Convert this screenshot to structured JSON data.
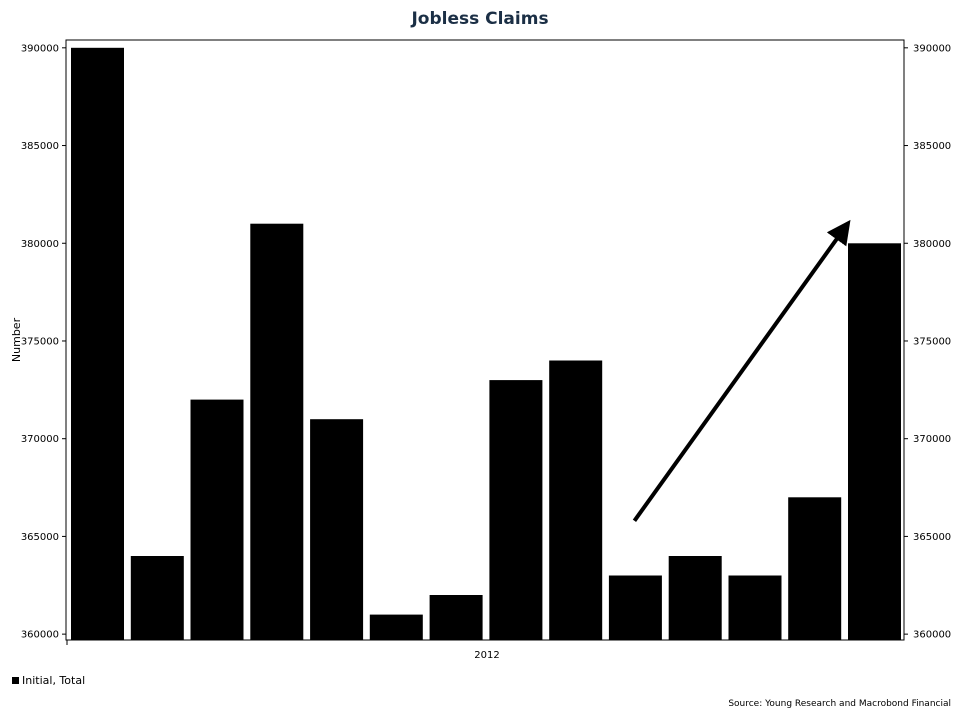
{
  "chart_data": {
    "type": "bar",
    "title": "Jobless Claims",
    "ylabel": "Number",
    "xlabel": "",
    "x_tick_label": "2012",
    "ylim": [
      359700,
      390400
    ],
    "y_ticks": [
      360000,
      365000,
      370000,
      375000,
      380000,
      385000,
      390000
    ],
    "y_tick_labels": [
      "360000",
      "365000",
      "370000",
      "375000",
      "380000",
      "385000",
      "390000"
    ],
    "secondary_y_axis": true,
    "grid": false,
    "legend_position": "bottom-left",
    "series": [
      {
        "name": "Initial, Total",
        "color": "#000000",
        "values": [
          390000,
          364000,
          372000,
          381000,
          371000,
          361000,
          362000,
          373000,
          374000,
          363000,
          364000,
          363000,
          367000,
          380000
        ]
      }
    ],
    "annotations": [
      {
        "type": "arrow",
        "from_bar_index": 9,
        "to_bar_index": 13,
        "from_value": 365800,
        "to_value": 380700,
        "color": "#000000"
      }
    ]
  },
  "legend": {
    "label": "Initial, Total"
  },
  "source": "Source: Young Research and Macrobond Financial"
}
